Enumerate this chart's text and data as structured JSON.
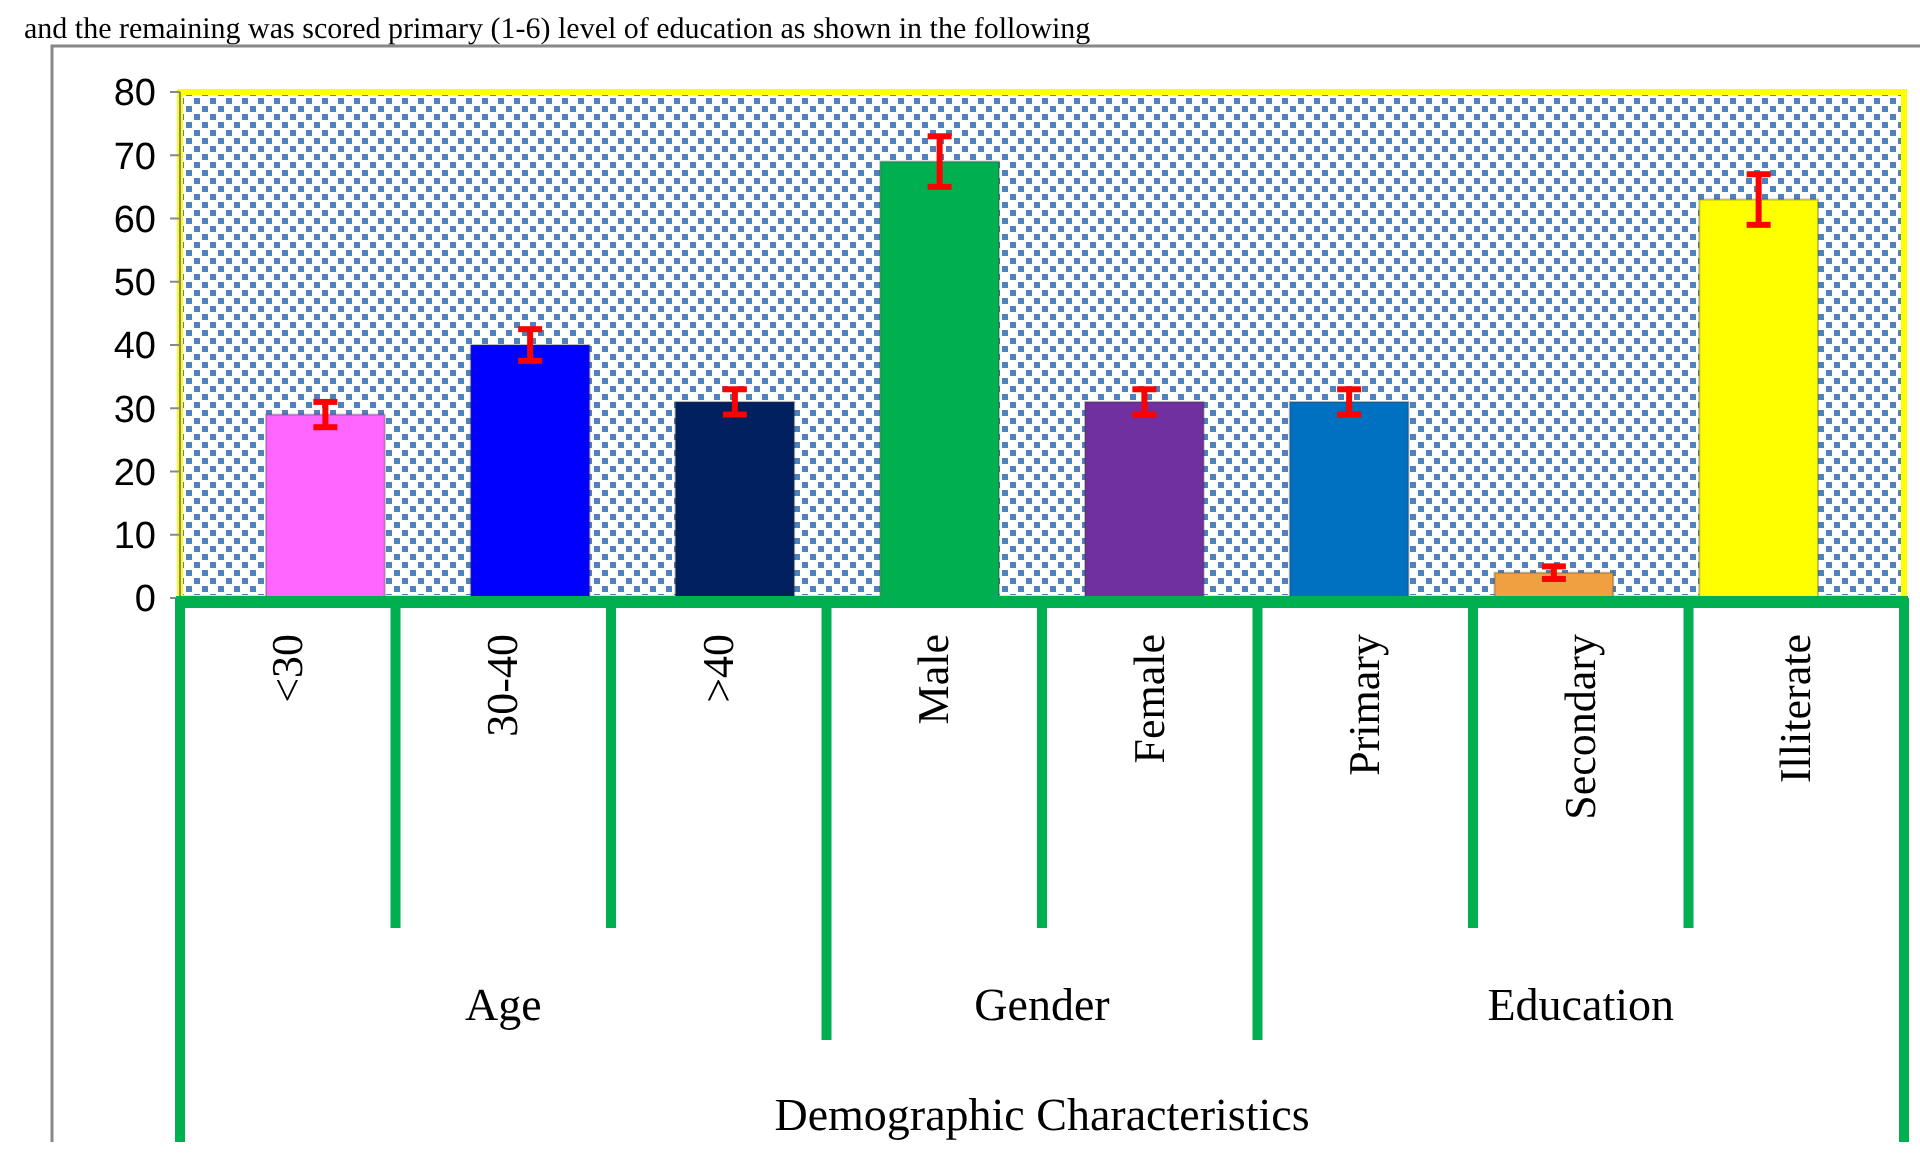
{
  "chart_data": {
    "type": "bar",
    "categories": [
      "<30",
      "30-40",
      ">40",
      "Male",
      "Female",
      "Primary",
      "Secondary",
      "Illiterate"
    ],
    "values": [
      29,
      40,
      31,
      69,
      31,
      31,
      4,
      63
    ],
    "colors": [
      "#ff66ff",
      "#0000ff",
      "#002060",
      "#00b050",
      "#7030a0",
      "#0070c0",
      "#f0a040",
      "#ffff00"
    ],
    "errors": [
      2,
      2.5,
      2,
      4,
      2,
      2,
      1,
      4
    ],
    "ylim": [
      0,
      80
    ],
    "yticks": [
      0,
      10,
      20,
      30,
      40,
      50,
      60,
      70,
      80
    ],
    "grid": false,
    "annotations": [
      "and the remaining was scored primary (1-6) level of education as shown in the following",
      "Age",
      "Gender",
      "Education",
      "Demographic Characteristics"
    ]
  }
}
